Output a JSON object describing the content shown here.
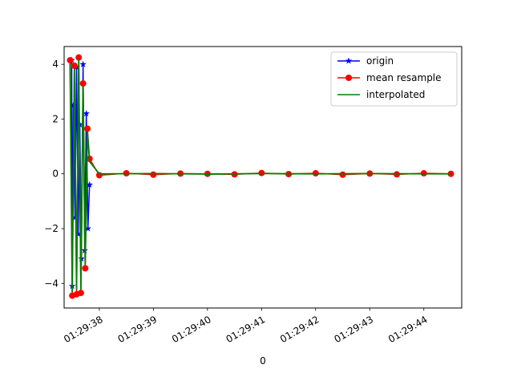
{
  "chart_data": {
    "type": "line",
    "title": "",
    "xlabel": "0",
    "ylabel": "",
    "x_axis_type": "time",
    "xlim": [
      "01:29:37.35",
      "01:29:44.70"
    ],
    "ylim": [
      -4.9,
      4.65
    ],
    "x_ticks": [
      "01:29:38",
      "01:29:39",
      "01:29:40",
      "01:29:41",
      "01:29:42",
      "01:29:43",
      "01:29:44"
    ],
    "y_ticks": [
      -4,
      -2,
      0,
      2,
      4
    ],
    "grid": false,
    "legend_position": "top-right",
    "series": [
      {
        "name": "origin",
        "color": "#0000ff",
        "marker": "star",
        "x": [
          "01:29:37.49",
          "01:29:37.50",
          "01:29:37.52",
          "01:29:37.55",
          "01:29:37.58",
          "01:29:37.61",
          "01:29:37.64",
          "01:29:37.67",
          "01:29:37.70",
          "01:29:37.73",
          "01:29:37.76",
          "01:29:37.79",
          "01:29:37.82"
        ],
        "y": [
          4.15,
          -4.1,
          2.5,
          -1.6,
          3.9,
          -2.2,
          1.8,
          -3.1,
          4.0,
          -2.8,
          2.2,
          -2.0,
          -0.4
        ]
      },
      {
        "name": "mean resample",
        "color": "#ff0000",
        "marker": "circle",
        "x": [
          "01:29:37.46",
          "01:29:37.50",
          "01:29:37.54",
          "01:29:37.58",
          "01:29:37.62",
          "01:29:37.66",
          "01:29:37.70",
          "01:29:37.74",
          "01:29:37.78",
          "01:29:37.82",
          "01:29:38.00",
          "01:29:38.50",
          "01:29:39.00",
          "01:29:39.50",
          "01:29:40.00",
          "01:29:40.50",
          "01:29:41.00",
          "01:29:41.50",
          "01:29:42.00",
          "01:29:42.50",
          "01:29:43.00",
          "01:29:43.50",
          "01:29:44.00",
          "01:29:44.50"
        ],
        "y": [
          4.15,
          -4.45,
          3.95,
          -4.4,
          4.25,
          -4.35,
          3.3,
          -3.45,
          1.65,
          0.55,
          -0.05,
          0.02,
          -0.03,
          0.01,
          0.0,
          -0.02,
          0.03,
          -0.01,
          0.02,
          -0.03,
          0.01,
          -0.02,
          0.02,
          0.0
        ]
      },
      {
        "name": "interpolated",
        "color": "#008000",
        "marker": "none",
        "x": [
          "01:29:37.46",
          "01:29:37.50",
          "01:29:37.54",
          "01:29:37.58",
          "01:29:37.62",
          "01:29:37.66",
          "01:29:37.70",
          "01:29:37.74",
          "01:29:37.78",
          "01:29:37.82",
          "01:29:38.00",
          "01:29:39.00",
          "01:29:40.00",
          "01:29:41.00",
          "01:29:42.00",
          "01:29:43.00",
          "01:29:44.00",
          "01:29:44.50"
        ],
        "y": [
          4.05,
          -4.3,
          3.8,
          -4.2,
          4.15,
          -4.2,
          3.2,
          -3.3,
          1.55,
          0.45,
          0.0,
          0.01,
          -0.01,
          0.01,
          0.0,
          0.01,
          0.0,
          0.0
        ]
      }
    ]
  }
}
